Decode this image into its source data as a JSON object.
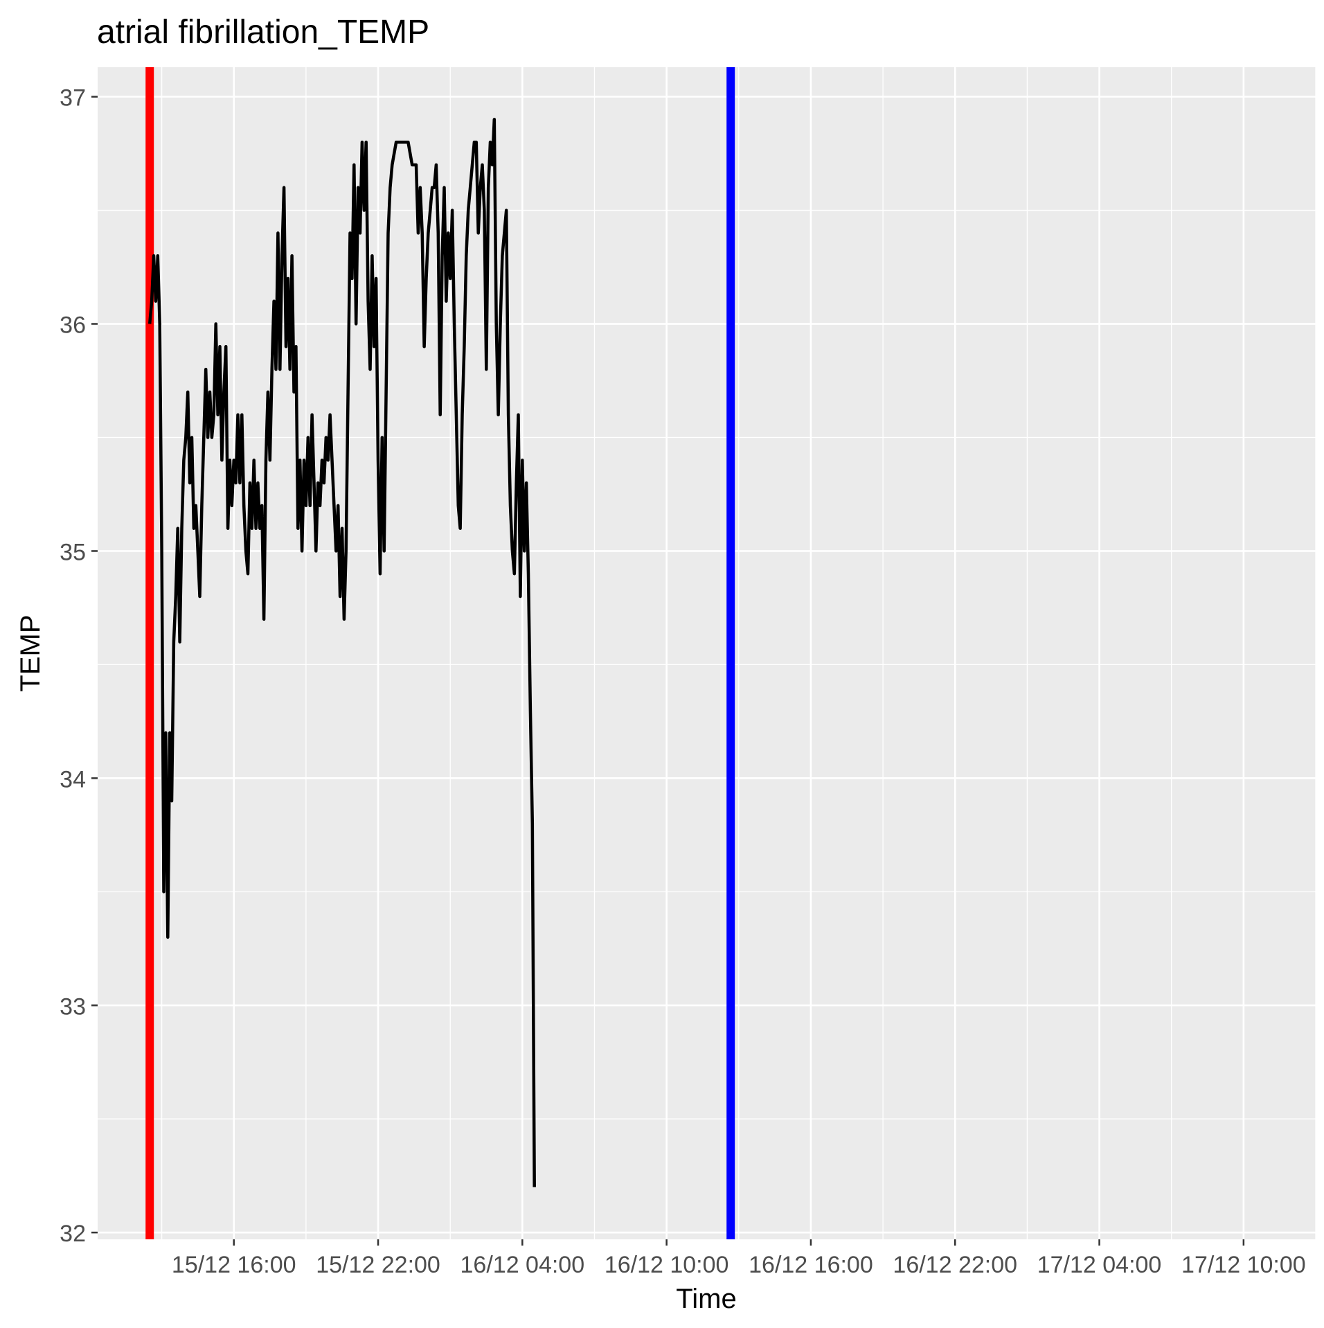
{
  "chart_data": {
    "type": "line",
    "title": "atrial fibrillation_TEMP",
    "xlabel": "Time",
    "ylabel": "TEMP",
    "x_axis": {
      "kind": "datetime",
      "range": [
        "15/12 10:20",
        "17/12 13:00"
      ],
      "ticks": [
        "15/12 16:00",
        "15/12 22:00",
        "16/12 04:00",
        "16/12 10:00",
        "16/12 16:00",
        "16/12 22:00",
        "17/12 04:00",
        "17/12 10:00"
      ]
    },
    "y_axis": {
      "range": [
        31.97,
        37.13
      ],
      "ticks": [
        32,
        33,
        34,
        35,
        36,
        37
      ]
    },
    "grid": true,
    "legend": "none",
    "colors": {
      "panel": "#ebebeb",
      "grid": "#ffffff",
      "line": "#000000",
      "start_marker": "#ff0000",
      "end_marker": "#0000ff"
    },
    "vlines": [
      {
        "x": "15/12 12:30",
        "color": "#ff0000"
      },
      {
        "x": "16/12 12:40",
        "color": "#0000ff"
      }
    ],
    "series": [
      {
        "values": [
          [
            "15/12 12:30",
            36.0
          ],
          [
            "15/12 12:35",
            36.1
          ],
          [
            "15/12 12:40",
            36.3
          ],
          [
            "15/12 12:45",
            36.1
          ],
          [
            "15/12 12:50",
            36.3
          ],
          [
            "15/12 12:55",
            36.0
          ],
          [
            "15/12 13:00",
            35.0
          ],
          [
            "15/12 13:05",
            33.5
          ],
          [
            "15/12 13:10",
            34.2
          ],
          [
            "15/12 13:15",
            33.3
          ],
          [
            "15/12 13:20",
            34.2
          ],
          [
            "15/12 13:25",
            33.9
          ],
          [
            "15/12 13:30",
            34.6
          ],
          [
            "15/12 13:35",
            34.8
          ],
          [
            "15/12 13:40",
            35.1
          ],
          [
            "15/12 13:45",
            34.6
          ],
          [
            "15/12 13:50",
            35.1
          ],
          [
            "15/12 13:55",
            35.4
          ],
          [
            "15/12 14:00",
            35.5
          ],
          [
            "15/12 14:05",
            35.7
          ],
          [
            "15/12 14:10",
            35.3
          ],
          [
            "15/12 14:15",
            35.5
          ],
          [
            "15/12 14:20",
            35.1
          ],
          [
            "15/12 14:25",
            35.2
          ],
          [
            "15/12 14:30",
            35.0
          ],
          [
            "15/12 14:35",
            34.8
          ],
          [
            "15/12 14:40",
            35.2
          ],
          [
            "15/12 14:45",
            35.5
          ],
          [
            "15/12 14:50",
            35.8
          ],
          [
            "15/12 14:55",
            35.5
          ],
          [
            "15/12 15:00",
            35.7
          ],
          [
            "15/12 15:05",
            35.5
          ],
          [
            "15/12 15:10",
            35.6
          ],
          [
            "15/12 15:15",
            36.0
          ],
          [
            "15/12 15:20",
            35.6
          ],
          [
            "15/12 15:25",
            35.9
          ],
          [
            "15/12 15:30",
            35.4
          ],
          [
            "15/12 15:35",
            35.7
          ],
          [
            "15/12 15:40",
            35.9
          ],
          [
            "15/12 15:45",
            35.1
          ],
          [
            "15/12 15:50",
            35.4
          ],
          [
            "15/12 15:55",
            35.2
          ],
          [
            "15/12 16:00",
            35.4
          ],
          [
            "15/12 16:05",
            35.3
          ],
          [
            "15/12 16:10",
            35.6
          ],
          [
            "15/12 16:15",
            35.3
          ],
          [
            "15/12 16:20",
            35.6
          ],
          [
            "15/12 16:25",
            35.2
          ],
          [
            "15/12 16:30",
            35.0
          ],
          [
            "15/12 16:35",
            34.9
          ],
          [
            "15/12 16:40",
            35.3
          ],
          [
            "15/12 16:45",
            35.1
          ],
          [
            "15/12 16:50",
            35.4
          ],
          [
            "15/12 16:55",
            35.1
          ],
          [
            "15/12 17:00",
            35.3
          ],
          [
            "15/12 17:05",
            35.1
          ],
          [
            "15/12 17:10",
            35.2
          ],
          [
            "15/12 17:15",
            34.7
          ],
          [
            "15/12 17:20",
            35.4
          ],
          [
            "15/12 17:25",
            35.7
          ],
          [
            "15/12 17:30",
            35.4
          ],
          [
            "15/12 17:35",
            35.8
          ],
          [
            "15/12 17:40",
            36.1
          ],
          [
            "15/12 17:45",
            35.8
          ],
          [
            "15/12 17:50",
            36.4
          ],
          [
            "15/12 17:55",
            35.8
          ],
          [
            "15/12 18:00",
            36.3
          ],
          [
            "15/12 18:05",
            36.6
          ],
          [
            "15/12 18:10",
            35.9
          ],
          [
            "15/12 18:15",
            36.2
          ],
          [
            "15/12 18:20",
            35.8
          ],
          [
            "15/12 18:25",
            36.3
          ],
          [
            "15/12 18:30",
            35.7
          ],
          [
            "15/12 18:35",
            35.9
          ],
          [
            "15/12 18:40",
            35.1
          ],
          [
            "15/12 18:45",
            35.4
          ],
          [
            "15/12 18:50",
            35.0
          ],
          [
            "15/12 18:55",
            35.4
          ],
          [
            "15/12 19:00",
            35.2
          ],
          [
            "15/12 19:05",
            35.5
          ],
          [
            "15/12 19:10",
            35.2
          ],
          [
            "15/12 19:15",
            35.6
          ],
          [
            "15/12 19:20",
            35.3
          ],
          [
            "15/12 19:25",
            35.0
          ],
          [
            "15/12 19:30",
            35.3
          ],
          [
            "15/12 19:35",
            35.2
          ],
          [
            "15/12 19:40",
            35.4
          ],
          [
            "15/12 19:45",
            35.3
          ],
          [
            "15/12 19:50",
            35.5
          ],
          [
            "15/12 19:55",
            35.4
          ],
          [
            "15/12 20:00",
            35.6
          ],
          [
            "15/12 20:05",
            35.4
          ],
          [
            "15/12 20:10",
            35.2
          ],
          [
            "15/12 20:15",
            35.0
          ],
          [
            "15/12 20:20",
            35.2
          ],
          [
            "15/12 20:25",
            34.8
          ],
          [
            "15/12 20:30",
            35.1
          ],
          [
            "15/12 20:35",
            34.7
          ],
          [
            "15/12 20:40",
            35.0
          ],
          [
            "15/12 20:45",
            35.7
          ],
          [
            "15/12 20:50",
            36.4
          ],
          [
            "15/12 20:55",
            36.2
          ],
          [
            "15/12 21:00",
            36.7
          ],
          [
            "15/12 21:05",
            36.0
          ],
          [
            "15/12 21:10",
            36.6
          ],
          [
            "15/12 21:15",
            36.4
          ],
          [
            "15/12 21:20",
            36.8
          ],
          [
            "15/12 21:25",
            36.5
          ],
          [
            "15/12 21:30",
            36.8
          ],
          [
            "15/12 21:35",
            36.1
          ],
          [
            "15/12 21:40",
            35.8
          ],
          [
            "15/12 21:45",
            36.3
          ],
          [
            "15/12 21:50",
            35.9
          ],
          [
            "15/12 21:55",
            36.2
          ],
          [
            "15/12 22:00",
            35.4
          ],
          [
            "15/12 22:05",
            34.9
          ],
          [
            "15/12 22:10",
            35.5
          ],
          [
            "15/12 22:15",
            35.0
          ],
          [
            "15/12 22:20",
            35.7
          ],
          [
            "15/12 22:25",
            36.4
          ],
          [
            "15/12 22:30",
            36.6
          ],
          [
            "15/12 22:35",
            36.7
          ],
          [
            "15/12 22:45",
            36.8
          ],
          [
            "15/12 23:00",
            36.8
          ],
          [
            "15/12 23:15",
            36.8
          ],
          [
            "15/12 23:25",
            36.7
          ],
          [
            "15/12 23:35",
            36.7
          ],
          [
            "15/12 23:40",
            36.4
          ],
          [
            "15/12 23:45",
            36.6
          ],
          [
            "15/12 23:50",
            36.4
          ],
          [
            "15/12 23:55",
            35.9
          ],
          [
            "16/12 00:00",
            36.2
          ],
          [
            "16/12 00:05",
            36.4
          ],
          [
            "16/12 00:10",
            36.5
          ],
          [
            "16/12 00:15",
            36.6
          ],
          [
            "16/12 00:20",
            36.6
          ],
          [
            "16/12 00:25",
            36.7
          ],
          [
            "16/12 00:30",
            36.4
          ],
          [
            "16/12 00:35",
            35.6
          ],
          [
            "16/12 00:40",
            36.3
          ],
          [
            "16/12 00:45",
            36.6
          ],
          [
            "16/12 00:50",
            36.1
          ],
          [
            "16/12 00:55",
            36.4
          ],
          [
            "16/12 01:00",
            36.2
          ],
          [
            "16/12 01:05",
            36.5
          ],
          [
            "16/12 01:10",
            36.0
          ],
          [
            "16/12 01:15",
            35.6
          ],
          [
            "16/12 01:20",
            35.2
          ],
          [
            "16/12 01:25",
            35.1
          ],
          [
            "16/12 01:30",
            35.6
          ],
          [
            "16/12 01:35",
            35.9
          ],
          [
            "16/12 01:40",
            36.3
          ],
          [
            "16/12 01:45",
            36.5
          ],
          [
            "16/12 01:50",
            36.6
          ],
          [
            "16/12 01:55",
            36.7
          ],
          [
            "16/12 02:00",
            36.8
          ],
          [
            "16/12 02:05",
            36.8
          ],
          [
            "16/12 02:10",
            36.4
          ],
          [
            "16/12 02:15",
            36.6
          ],
          [
            "16/12 02:20",
            36.7
          ],
          [
            "16/12 02:25",
            36.5
          ],
          [
            "16/12 02:30",
            35.8
          ],
          [
            "16/12 02:35",
            36.6
          ],
          [
            "16/12 02:40",
            36.8
          ],
          [
            "16/12 02:45",
            36.7
          ],
          [
            "16/12 02:50",
            36.9
          ],
          [
            "16/12 02:55",
            36.0
          ],
          [
            "16/12 03:00",
            35.6
          ],
          [
            "16/12 03:05",
            36.0
          ],
          [
            "16/12 03:10",
            36.3
          ],
          [
            "16/12 03:15",
            36.4
          ],
          [
            "16/12 03:20",
            36.5
          ],
          [
            "16/12 03:25",
            35.6
          ],
          [
            "16/12 03:30",
            35.2
          ],
          [
            "16/12 03:35",
            35.0
          ],
          [
            "16/12 03:40",
            34.9
          ],
          [
            "16/12 03:45",
            35.3
          ],
          [
            "16/12 03:50",
            35.6
          ],
          [
            "16/12 03:55",
            34.8
          ],
          [
            "16/12 04:00",
            35.4
          ],
          [
            "16/12 04:05",
            35.0
          ],
          [
            "16/12 04:10",
            35.3
          ],
          [
            "16/12 04:15",
            34.9
          ],
          [
            "16/12 04:20",
            34.3
          ],
          [
            "16/12 04:25",
            33.8
          ],
          [
            "16/12 04:30",
            32.2
          ]
        ]
      }
    ]
  }
}
